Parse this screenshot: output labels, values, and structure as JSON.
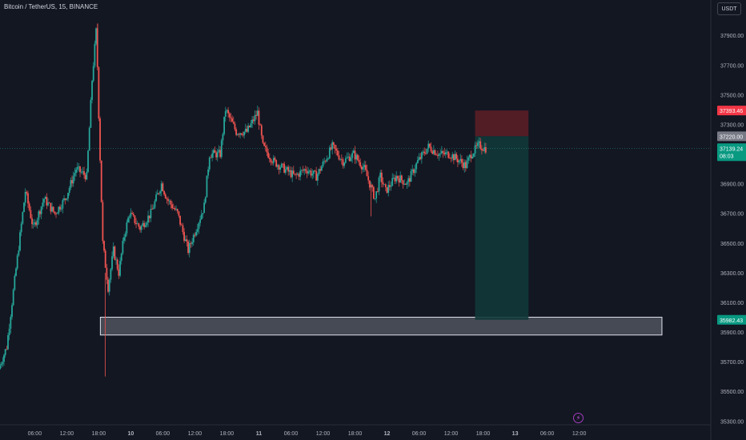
{
  "header": {
    "symbol_title": "Bitcoin / TetherUS, 15, BINANCE",
    "currency": "USDT"
  },
  "colors": {
    "background": "#131722",
    "up": "#26a69a",
    "down": "#ef5350",
    "grid": "#1e222d",
    "text": "#b2b5be",
    "stop_zone": "#5b1e27",
    "target_zone": "#12383a",
    "support_box": "#e0e3eb"
  },
  "icons": {
    "lightning": "lightning-icon"
  },
  "chart_data": {
    "type": "candlestick",
    "title": "Bitcoin / TetherUS, 15, BINANCE",
    "interval": "15",
    "exchange": "BINANCE",
    "y_ticks": [
      37900,
      37700,
      37500,
      37300,
      36900,
      36700,
      36500,
      36300,
      36100,
      35900,
      35700,
      35500,
      35300
    ],
    "y_tick_labels": [
      "37900.00",
      "37700.00",
      "37500.00",
      "37300.00",
      "36900.00",
      "36700.00",
      "36500.00",
      "36300.00",
      "36100.00",
      "35900.00",
      "35700.00",
      "35500.00",
      "35300.00"
    ],
    "ylim": [
      35280,
      38020
    ],
    "x_tick_labels": [
      "06:00",
      "12:00",
      "18:00",
      "10",
      "06:00",
      "12:00",
      "18:00",
      "11",
      "06:00",
      "12:00",
      "18:00",
      "12",
      "06:00",
      "12:00",
      "18:00",
      "13",
      "06:00",
      "12:00"
    ],
    "xlim_hours": [
      -6.5,
      126.5
    ],
    "x_tick_hours": [
      0,
      6,
      12,
      18,
      24,
      30,
      36,
      42,
      48,
      54,
      60,
      66,
      72,
      78,
      84,
      90,
      96,
      102
    ],
    "price_path": [
      [
        -6.5,
        35650
      ],
      [
        -5,
        35800
      ],
      [
        -3,
        36400
      ],
      [
        -1.5,
        36850
      ],
      [
        0,
        36600
      ],
      [
        2,
        36800
      ],
      [
        4,
        36700
      ],
      [
        6,
        36800
      ],
      [
        8,
        37000
      ],
      [
        10,
        36950
      ],
      [
        11,
        37600
      ],
      [
        11.8,
        37950
      ],
      [
        12.3,
        37300
      ],
      [
        13,
        36500
      ],
      [
        14,
        36200
      ],
      [
        15,
        36450
      ],
      [
        16,
        36300
      ],
      [
        17,
        36550
      ],
      [
        18,
        36700
      ],
      [
        20,
        36600
      ],
      [
        22,
        36700
      ],
      [
        24,
        36900
      ],
      [
        25,
        36800
      ],
      [
        27,
        36700
      ],
      [
        29,
        36450
      ],
      [
        30,
        36550
      ],
      [
        32,
        36750
      ],
      [
        33,
        37100
      ],
      [
        35,
        37100
      ],
      [
        36,
        37400
      ],
      [
        38,
        37250
      ],
      [
        40,
        37250
      ],
      [
        42,
        37380
      ],
      [
        43,
        37150
      ],
      [
        45,
        37050
      ],
      [
        47,
        37000
      ],
      [
        49,
        36950
      ],
      [
        51,
        37000
      ],
      [
        53,
        36950
      ],
      [
        56,
        37150
      ],
      [
        58,
        37050
      ],
      [
        60,
        37100
      ],
      [
        62,
        37000
      ],
      [
        63,
        36900
      ],
      [
        64,
        36800
      ],
      [
        65,
        36950
      ],
      [
        66,
        36850
      ],
      [
        68,
        36950
      ],
      [
        70,
        36900
      ],
      [
        72,
        37050
      ],
      [
        74,
        37150
      ],
      [
        76,
        37100
      ],
      [
        78,
        37100
      ],
      [
        80,
        37050
      ],
      [
        81,
        37020
      ],
      [
        82,
        37100
      ],
      [
        83.5,
        37160
      ],
      [
        84.5,
        37139.24
      ]
    ],
    "current_price": 37139.24,
    "current_price_label": "37139.24",
    "countdown": "08:03",
    "stop_price_label": "37393.46",
    "entry_price_label": "37220.00",
    "target_price_label": "35982.43",
    "position_tool": {
      "type": "short",
      "entry": 37220.0,
      "stop": 37393.46,
      "target": 35982.43,
      "start_hours": 82.5,
      "end_hours": 92.5
    },
    "support_box": {
      "top": 36000,
      "bottom": 35880,
      "start_hours": 12.3,
      "end_hours": 117.5
    },
    "grid": false,
    "legend": "none"
  }
}
